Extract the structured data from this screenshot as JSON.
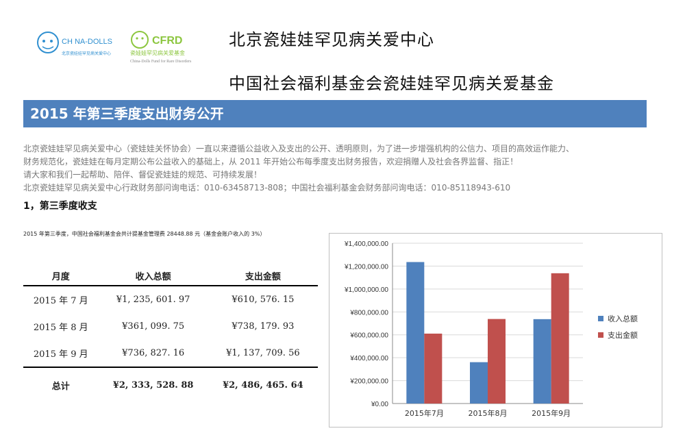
{
  "header": {
    "logo_left_text": "CH NA-DOLLS",
    "logo_left_sub": "北京瓷娃娃罕见病关爱中心",
    "logo_right_text": "CFRD",
    "logo_right_sub": "瓷娃娃罕见病关爱基金",
    "logo_right_en": "China-Dolls Fund for Rare Disorders",
    "org_name_1": "北京瓷娃娃罕见病关爱中心",
    "org_name_2": "中国社会福利基金会瓷娃娃罕见病关爱基金"
  },
  "banner": {
    "title": "2015 年第三季度支出财务公开"
  },
  "intro": {
    "line1": "北京瓷娃娃罕见病关爱中心（瓷娃娃关怀协会）一直以来遵循公益收入及支出的公开、透明原则，为了进一步增强机构的公信力、项目的高效运作能力、",
    "line2": "财务规范化，瓷娃娃在每月定期公布公益收入的基础上，从 2011 年开始公布每季度支出财务报告，欢迎捐赠人及社会各界监督、指正！",
    "line3": "请大家和我们一起帮助、陪伴、督促瓷娃娃的规范、可持续发展！",
    "line4": "北京瓷娃娃罕见病关爱中心行政财务部问询电话：010-63458713-808；中国社会福利基金会财务部问询电话：010-85118943-610"
  },
  "section": {
    "title": "1，第三季度收支"
  },
  "fee_note": "2015 年第三季度，中国社会福利基金会共计提基金管理费 28448.88 元（基金会账户收入的 3%）",
  "table": {
    "headers": [
      "月度",
      "收入总额",
      "支出金额"
    ],
    "rows": [
      [
        "2015 年 7 月",
        "¥1, 235, 601. 97",
        "¥610, 576. 15"
      ],
      [
        "2015 年 8 月",
        "¥361, 099. 75",
        "¥738, 179. 93"
      ],
      [
        "2015 年 9 月",
        "¥736, 827. 16",
        "¥1, 137, 709. 56"
      ]
    ],
    "total": [
      "总计",
      "¥2, 333, 528. 88",
      "¥2, 486, 465. 64"
    ]
  },
  "chart_data": {
    "type": "bar",
    "categories": [
      "2015年7月",
      "2015年8月",
      "2015年9月"
    ],
    "series": [
      {
        "name": "收入总额",
        "values": [
          1235601.97,
          361099.75,
          736827.16
        ],
        "color": "#4f81bd"
      },
      {
        "name": "支出金额",
        "values": [
          610576.15,
          738179.93,
          1137709.56
        ],
        "color": "#c0504d"
      }
    ],
    "ylim": [
      0,
      1400000
    ],
    "yticks": [
      "¥0.00",
      "¥200,000.00",
      "¥400,000.00",
      "¥600,000.00",
      "¥800,000.00",
      "¥1,000,000.00",
      "¥1,200,000.00",
      "¥1,400,000.00"
    ],
    "grid": true,
    "legend": "right"
  },
  "colors": {
    "banner": "#4f81bd",
    "logo_blue": "#2f8fd0",
    "logo_green": "#8cc63f"
  }
}
